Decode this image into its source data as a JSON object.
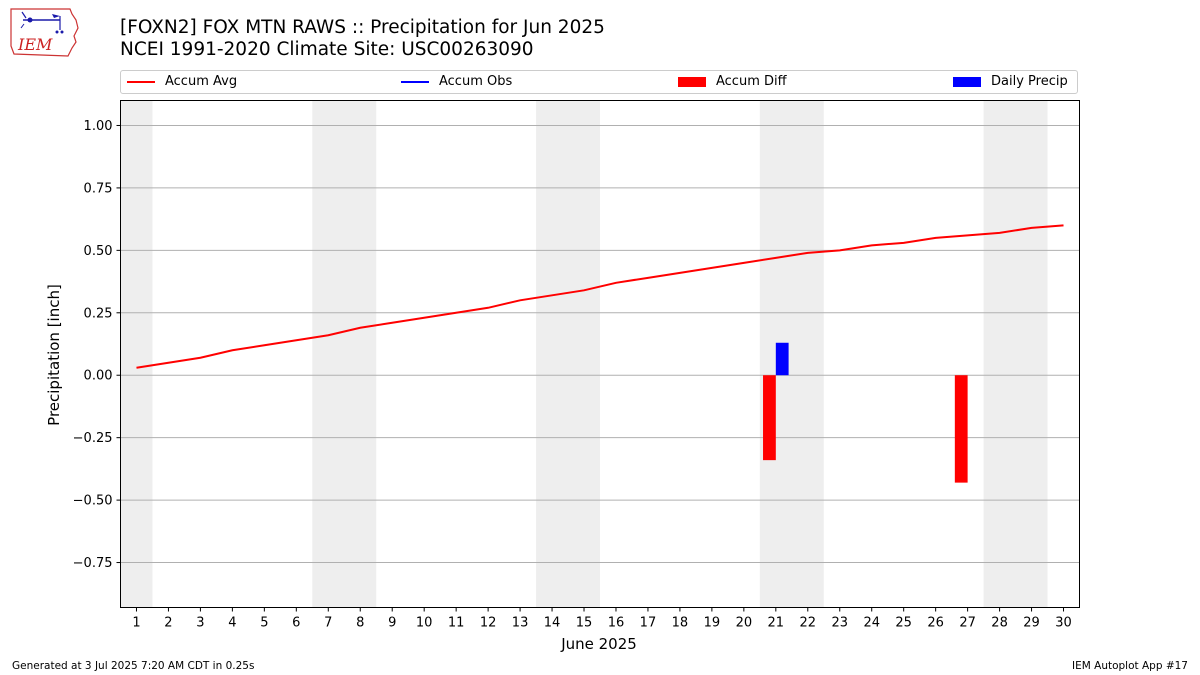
{
  "header": {
    "title_line1": "[FOXN2] FOX MTN RAWS :: Precipitation for Jun 2025",
    "title_line2": "NCEI 1991-2020 Climate Site: USC00263090",
    "logo_text": "IEM"
  },
  "legend": {
    "accum_avg": "Accum Avg",
    "accum_obs": "Accum Obs",
    "accum_diff": "Accum Diff",
    "daily_precip": "Daily Precip"
  },
  "footer": {
    "left": "Generated at 3 Jul 2025 7:20 AM CDT in 0.25s",
    "right": "IEM Autoplot App #17"
  },
  "colors": {
    "accum_avg": "#ff0000",
    "accum_obs": "#0000ff",
    "accum_diff": "#ff0000",
    "daily_precip": "#0000ff",
    "weekend_shade": "#eeeeee",
    "grid": "#b0b0b0"
  },
  "chart_data": {
    "type": "line",
    "xlabel": "June 2025",
    "ylabel": "Precipitation [inch]",
    "xlim": [
      0.5,
      30.5
    ],
    "ylim": [
      -0.93,
      1.1
    ],
    "x": [
      1,
      2,
      3,
      4,
      5,
      6,
      7,
      8,
      9,
      10,
      11,
      12,
      13,
      14,
      15,
      16,
      17,
      18,
      19,
      20,
      21,
      22,
      23,
      24,
      25,
      26,
      27,
      28,
      29,
      30
    ],
    "yticks": [
      -0.75,
      -0.5,
      -0.25,
      0.0,
      0.25,
      0.5,
      0.75,
      1.0
    ],
    "ytick_labels": [
      "−0.75",
      "−0.50",
      "−0.25",
      "0.00",
      "0.25",
      "0.50",
      "0.75",
      "1.00"
    ],
    "grid": "y",
    "weekend_shading": [
      [
        0.5,
        1.5
      ],
      [
        6.5,
        8.5
      ],
      [
        13.5,
        15.5
      ],
      [
        20.5,
        22.5
      ],
      [
        27.5,
        29.5
      ]
    ],
    "legend_position": "top, outside plot",
    "series": [
      {
        "name": "Accum Avg",
        "type": "line",
        "x": [
          1,
          2,
          3,
          4,
          5,
          6,
          7,
          8,
          9,
          10,
          11,
          12,
          13,
          14,
          15,
          16,
          17,
          18,
          19,
          20,
          21,
          22,
          23,
          24,
          25,
          26,
          27,
          28,
          29,
          30
        ],
        "values": [
          0.03,
          0.05,
          0.07,
          0.1,
          0.12,
          0.14,
          0.16,
          0.19,
          0.21,
          0.23,
          0.25,
          0.27,
          0.3,
          0.32,
          0.34,
          0.37,
          0.39,
          0.41,
          0.43,
          0.45,
          0.47,
          0.49,
          0.5,
          0.52,
          0.53,
          0.55,
          0.56,
          0.57,
          0.59,
          0.6
        ]
      },
      {
        "name": "Accum Obs",
        "type": "line",
        "x": [],
        "values": []
      },
      {
        "name": "Accum Diff",
        "type": "bar",
        "x": [
          21,
          27
        ],
        "values": [
          -0.34,
          -0.43
        ]
      },
      {
        "name": "Daily Precip",
        "type": "bar",
        "x": [
          21
        ],
        "values": [
          0.13
        ]
      }
    ]
  }
}
